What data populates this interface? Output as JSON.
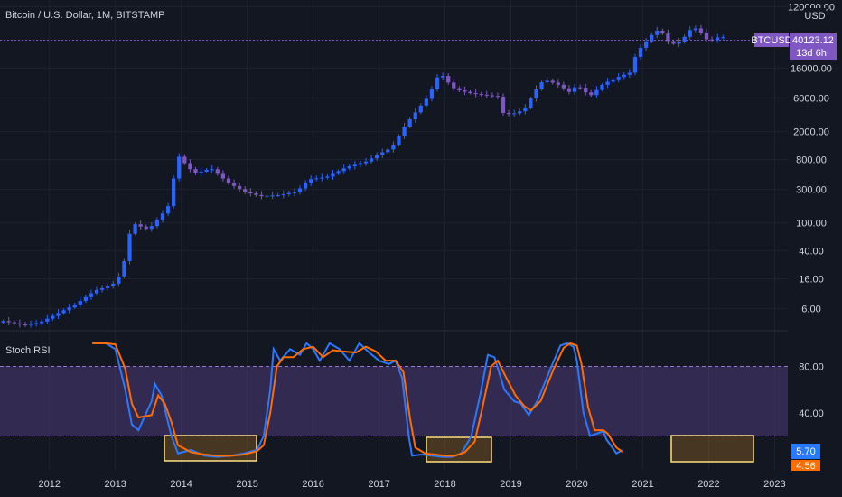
{
  "chart_data": [
    {
      "type": "candlestick",
      "title": "Bitcoin / U.S. Dollar, 1M, BITSTAMP",
      "yscale": "log",
      "ylim": [
        3,
        150000
      ],
      "currency": "USD",
      "yticks": [
        "120000.00",
        "16000.00",
        "6000.00",
        "2000.00",
        "800.00",
        "300.00",
        "100.00",
        "40.00",
        "16.00",
        "6.00"
      ],
      "ytick_values": [
        120000,
        16000,
        6000,
        2000,
        800,
        300,
        100,
        40,
        16,
        6
      ],
      "xlabels": [
        "2012",
        "2013",
        "2014",
        "2015",
        "2016",
        "2017",
        "2018",
        "2019",
        "2020",
        "2021",
        "2022",
        "2023"
      ],
      "xlim": [
        2011.25,
        2023.2
      ],
      "last_price": {
        "symbol": "BTCUSD",
        "value": "40123.12",
        "countdown": "13d 6h",
        "price": 40123.12
      },
      "colors": {
        "up": "#2962ff",
        "down": "#7e57c2",
        "background": "#131722"
      },
      "anchors": [
        [
          2011.3,
          4
        ],
        [
          2011.6,
          3.5
        ],
        [
          2011.85,
          3.8
        ],
        [
          2012.1,
          5
        ],
        [
          2012.4,
          7
        ],
        [
          2012.7,
          11
        ],
        [
          2012.95,
          13
        ],
        [
          2013.1,
          20
        ],
        [
          2013.25,
          100
        ],
        [
          2013.5,
          80
        ],
        [
          2013.7,
          130
        ],
        [
          2013.85,
          200
        ],
        [
          2013.92,
          1000
        ],
        [
          2014.0,
          800
        ],
        [
          2014.2,
          500
        ],
        [
          2014.45,
          600
        ],
        [
          2014.7,
          380
        ],
        [
          2014.95,
          280
        ],
        [
          2015.2,
          240
        ],
        [
          2015.5,
          250
        ],
        [
          2015.75,
          280
        ],
        [
          2015.95,
          420
        ],
        [
          2016.2,
          450
        ],
        [
          2016.5,
          620
        ],
        [
          2016.8,
          750
        ],
        [
          2017.0,
          960
        ],
        [
          2017.2,
          1200
        ],
        [
          2017.4,
          2500
        ],
        [
          2017.6,
          4300
        ],
        [
          2017.75,
          6400
        ],
        [
          2017.92,
          14000
        ],
        [
          2018.05,
          10000
        ],
        [
          2018.15,
          8000
        ],
        [
          2018.4,
          7000
        ],
        [
          2018.6,
          6600
        ],
        [
          2018.8,
          6300
        ],
        [
          2018.88,
          3700
        ],
        [
          2019.0,
          3500
        ],
        [
          2019.2,
          4100
        ],
        [
          2019.4,
          8500
        ],
        [
          2019.5,
          11000
        ],
        [
          2019.7,
          9500
        ],
        [
          2019.9,
          7200
        ],
        [
          2020.0,
          9300
        ],
        [
          2020.2,
          6400
        ],
        [
          2020.4,
          9600
        ],
        [
          2020.6,
          11700
        ],
        [
          2020.8,
          13800
        ],
        [
          2020.92,
          29000
        ],
        [
          2021.0,
          33000
        ],
        [
          2021.1,
          45000
        ],
        [
          2021.25,
          58000
        ],
        [
          2021.4,
          37000
        ],
        [
          2021.5,
          35000
        ],
        [
          2021.6,
          41000
        ],
        [
          2021.75,
          61000
        ],
        [
          2021.85,
          57000
        ],
        [
          2021.92,
          46000
        ],
        [
          2022.0,
          38000
        ],
        [
          2022.1,
          43000
        ],
        [
          2022.2,
          45500
        ],
        [
          2022.27,
          40123
        ]
      ]
    },
    {
      "type": "line",
      "title": "Stoch RSI",
      "ylim": [
        -10,
        110
      ],
      "yticks": [
        "80.00",
        "40.00"
      ],
      "ytick_values": [
        80,
        40
      ],
      "band": {
        "upper": 80,
        "lower": 20,
        "color": "#7e57c2"
      },
      "last_values": {
        "k": "5.70",
        "d": "4.56"
      },
      "series": [
        {
          "color": "#2979ff",
          "anchors": [
            [
              2011.3,
              100
            ],
            [
              2011.5,
              100
            ],
            [
              2011.65,
              95
            ],
            [
              2011.8,
              60
            ],
            [
              2011.9,
              30
            ],
            [
              2012.0,
              25
            ],
            [
              2012.2,
              50
            ],
            [
              2012.25,
              65
            ],
            [
              2012.35,
              55
            ],
            [
              2012.5,
              20
            ],
            [
              2012.6,
              5
            ],
            [
              2012.8,
              8
            ],
            [
              2013.0,
              3
            ],
            [
              2013.2,
              2
            ],
            [
              2013.4,
              3
            ],
            [
              2013.6,
              5
            ],
            [
              2013.8,
              8
            ],
            [
              2013.9,
              20
            ],
            [
              2014.0,
              60
            ],
            [
              2014.05,
              95
            ],
            [
              2014.15,
              85
            ],
            [
              2014.3,
              95
            ],
            [
              2014.45,
              90
            ],
            [
              2014.55,
              100
            ],
            [
              2014.65,
              95
            ],
            [
              2014.75,
              85
            ],
            [
              2014.9,
              100
            ],
            [
              2015.05,
              95
            ],
            [
              2015.2,
              85
            ],
            [
              2015.35,
              100
            ],
            [
              2015.5,
              92
            ],
            [
              2015.65,
              85
            ],
            [
              2015.8,
              82
            ],
            [
              2015.9,
              85
            ],
            [
              2016.0,
              70
            ],
            [
              2016.1,
              20
            ],
            [
              2016.15,
              3
            ],
            [
              2016.3,
              4
            ],
            [
              2016.45,
              3
            ],
            [
              2016.6,
              2
            ],
            [
              2016.75,
              2
            ],
            [
              2016.9,
              5
            ],
            [
              2017.05,
              20
            ],
            [
              2017.2,
              60
            ],
            [
              2017.3,
              90
            ],
            [
              2017.4,
              88
            ],
            [
              2017.55,
              60
            ],
            [
              2017.7,
              50
            ],
            [
              2017.8,
              48
            ],
            [
              2017.92,
              38
            ],
            [
              2018.05,
              50
            ],
            [
              2018.25,
              78
            ],
            [
              2018.4,
              98
            ],
            [
              2018.5,
              100
            ],
            [
              2018.6,
              97
            ],
            [
              2018.65,
              85
            ],
            [
              2018.75,
              40
            ],
            [
              2018.85,
              20
            ],
            [
              2018.95,
              22
            ],
            [
              2019.05,
              24
            ],
            [
              2019.1,
              17
            ],
            [
              2019.25,
              5
            ],
            [
              2019.35,
              8
            ]
          ]
        },
        {
          "color": "#ff6d00",
          "anchors": [
            [
              2011.3,
              100
            ],
            [
              2011.5,
              100
            ],
            [
              2011.65,
              99
            ],
            [
              2011.8,
              78
            ],
            [
              2011.9,
              48
            ],
            [
              2012.0,
              36
            ],
            [
              2012.2,
              38
            ],
            [
              2012.3,
              55
            ],
            [
              2012.4,
              48
            ],
            [
              2012.5,
              32
            ],
            [
              2012.6,
              12
            ],
            [
              2012.8,
              6
            ],
            [
              2013.0,
              4
            ],
            [
              2013.2,
              3
            ],
            [
              2013.4,
              3
            ],
            [
              2013.6,
              4
            ],
            [
              2013.8,
              7
            ],
            [
              2013.9,
              12
            ],
            [
              2014.0,
              40
            ],
            [
              2014.1,
              80
            ],
            [
              2014.2,
              88
            ],
            [
              2014.35,
              88
            ],
            [
              2014.5,
              95
            ],
            [
              2014.65,
              97
            ],
            [
              2014.8,
              88
            ],
            [
              2014.95,
              94
            ],
            [
              2015.1,
              93
            ],
            [
              2015.3,
              92
            ],
            [
              2015.45,
              97
            ],
            [
              2015.6,
              93
            ],
            [
              2015.75,
              85
            ],
            [
              2015.9,
              85
            ],
            [
              2016.02,
              75
            ],
            [
              2016.12,
              35
            ],
            [
              2016.2,
              10
            ],
            [
              2016.35,
              5
            ],
            [
              2016.5,
              4
            ],
            [
              2016.65,
              3
            ],
            [
              2016.8,
              3
            ],
            [
              2016.95,
              6
            ],
            [
              2017.1,
              15
            ],
            [
              2017.22,
              45
            ],
            [
              2017.35,
              80
            ],
            [
              2017.45,
              85
            ],
            [
              2017.6,
              68
            ],
            [
              2017.72,
              55
            ],
            [
              2017.85,
              46
            ],
            [
              2017.95,
              42
            ],
            [
              2018.1,
              50
            ],
            [
              2018.3,
              78
            ],
            [
              2018.45,
              96
            ],
            [
              2018.55,
              100
            ],
            [
              2018.65,
              98
            ],
            [
              2018.72,
              82
            ],
            [
              2018.82,
              45
            ],
            [
              2018.92,
              25
            ],
            [
              2019.05,
              25
            ],
            [
              2019.12,
              22
            ],
            [
              2019.25,
              10
            ],
            [
              2019.35,
              6
            ]
          ]
        }
      ]
    }
  ]
}
